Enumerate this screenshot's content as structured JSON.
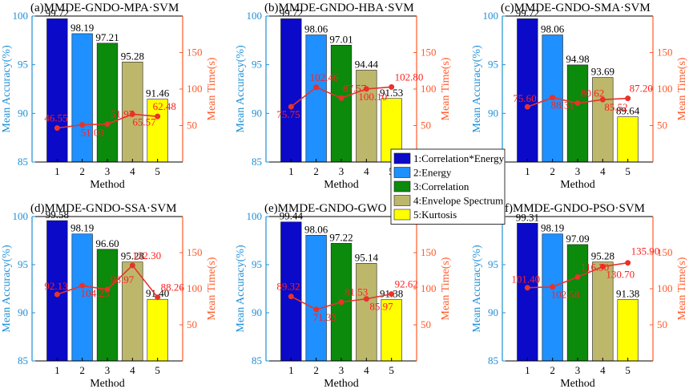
{
  "colors": {
    "bar1": "#0a0ac8",
    "bar2": "#1e90ff",
    "bar3": "#0b8a0b",
    "bar4": "#bdb76b",
    "bar5": "#ffff00",
    "accuracy_axis": "#1e8fd6",
    "time_axis": "#ff5a2a",
    "time_line": "#e8322a",
    "time_label": "#ff2020"
  },
  "legend": {
    "entries": [
      "1:Correlation*Energy",
      "2:Energy",
      "3:Correlation",
      "4:Envelope Spectrum",
      "5:Kurtosis"
    ]
  },
  "chart_data": [
    {
      "type": "bar",
      "title": "(a)MMDE-GNDO-MPA·SVM",
      "categories": [
        "1",
        "2",
        "3",
        "4",
        "5"
      ],
      "xlabel": "Method",
      "ylabel": "Mean Accuracy(%)",
      "ylim": [
        85,
        100
      ],
      "yticks": [
        "85",
        "90",
        "95",
        "100"
      ],
      "y2label": "Mean Time(s)",
      "y2lim": [
        0,
        200
      ],
      "y2ticks": [
        "50",
        "100",
        "150"
      ],
      "series": [
        {
          "name": "Mean Accuracy",
          "type": "bar",
          "values": [
            99.72,
            98.19,
            97.21,
            95.28,
            91.46
          ],
          "labels": [
            "99.72",
            "98.19",
            "97.21",
            "95.28",
            "91.46"
          ]
        },
        {
          "name": "Mean Time",
          "type": "line",
          "axis": "right",
          "values": [
            46.55,
            51.03,
            51.97,
            65.57,
            62.48
          ],
          "labels": [
            "46.55",
            "51.03",
            "51.97",
            "65.57",
            "62.48"
          ]
        }
      ]
    },
    {
      "type": "bar",
      "title": "(b)MMDE-GNDO-HBA·SVM",
      "categories": [
        "1",
        "2",
        "3",
        "4",
        "5"
      ],
      "xlabel": "Method",
      "ylabel": "Mean Accuracy(%)",
      "ylim": [
        85,
        100
      ],
      "yticks": [
        "85",
        "90",
        "95",
        "100"
      ],
      "y2label": "Mean Time(s)",
      "y2lim": [
        0,
        200
      ],
      "y2ticks": [
        "50",
        "100",
        "150"
      ],
      "series": [
        {
          "name": "Mean Accuracy",
          "type": "bar",
          "values": [
            99.72,
            98.06,
            97.01,
            94.44,
            91.53
          ],
          "labels": [
            "99.72",
            "98.06",
            "97.01",
            "94.44",
            "91.53"
          ]
        },
        {
          "name": "Mean Time",
          "type": "line",
          "axis": "right",
          "values": [
            75.75,
            102.46,
            87.57,
            100.1,
            102.8
          ],
          "labels": [
            "75.75",
            "102.46",
            "87.57",
            "100.10",
            "102.80"
          ]
        }
      ]
    },
    {
      "type": "bar",
      "title": "(c)MMDE-GNDO-SMA·SVM",
      "categories": [
        "1",
        "2",
        "3",
        "4",
        "5"
      ],
      "xlabel": "Method",
      "ylabel": "Mean Accuracy(%)",
      "ylim": [
        85,
        100
      ],
      "yticks": [
        "85",
        "90",
        "95",
        "100"
      ],
      "y2label": "Mean Time(s)",
      "y2lim": [
        0,
        200
      ],
      "y2ticks": [
        "50",
        "100",
        "150"
      ],
      "series": [
        {
          "name": "Mean Accuracy",
          "type": "bar",
          "values": [
            99.72,
            98.06,
            94.98,
            93.69,
            89.64
          ],
          "labels": [
            "99.72",
            "98.06",
            "94.98",
            "93.69",
            "89.64"
          ]
        },
        {
          "name": "Mean Time",
          "type": "line",
          "axis": "right",
          "values": [
            75.6,
            88.31,
            80.62,
            85.52,
            87.2
          ],
          "labels": [
            "75.60",
            "88.31",
            "80.62",
            "85.52",
            "87.20"
          ]
        }
      ]
    },
    {
      "type": "bar",
      "title": "(d)MMDE-GNDO-SSA·SVM",
      "categories": [
        "1",
        "2",
        "3",
        "4",
        "5"
      ],
      "xlabel": "Method",
      "ylabel": "Mean Accuracy(%)",
      "ylim": [
        85,
        100
      ],
      "yticks": [
        "85",
        "90",
        "95",
        "100"
      ],
      "y2label": "Mean Time(s)",
      "y2lim": [
        0,
        200
      ],
      "y2ticks": [
        "50",
        "100",
        "150"
      ],
      "series": [
        {
          "name": "Mean Accuracy",
          "type": "bar",
          "values": [
            99.58,
            98.19,
            96.6,
            95.28,
            91.4
          ],
          "labels": [
            "99.58",
            "98.19",
            "96.60",
            "95.28",
            "91.40"
          ]
        },
        {
          "name": "Mean Time",
          "type": "line",
          "axis": "right",
          "values": [
            92.13,
            104.25,
            98.97,
            132.3,
            88.26
          ],
          "labels": [
            "92.13",
            "104.25",
            "98.97",
            "132.30",
            "88.26"
          ]
        }
      ]
    },
    {
      "type": "bar",
      "title": "(e)MMDE-GNDO-GWO",
      "categories": [
        "1",
        "2",
        "3",
        "4",
        "5"
      ],
      "xlabel": "Method",
      "ylabel": "Mean Accuracy(%)",
      "ylim": [
        85,
        100
      ],
      "yticks": [
        "85",
        "90",
        "95",
        "100"
      ],
      "y2label": "Mean Time(s)",
      "y2lim": [
        0,
        200
      ],
      "y2ticks": [
        "50",
        "100",
        "150"
      ],
      "series": [
        {
          "name": "Mean Accuracy",
          "type": "bar",
          "values": [
            99.44,
            98.06,
            97.22,
            95.14,
            91.38
          ],
          "labels": [
            "99.44",
            "98.06",
            "97.22",
            "95.14",
            "91.38"
          ]
        },
        {
          "name": "Mean Time",
          "type": "line",
          "axis": "right",
          "values": [
            89.32,
            71.33,
            81.53,
            85.97,
            92.62
          ],
          "labels": [
            "89.32",
            "71.33",
            "81.53",
            "85.97",
            "92.62"
          ]
        }
      ]
    },
    {
      "type": "bar",
      "title": "(f)MMDE-GNDO-PSO·SVM",
      "categories": [
        "1",
        "2",
        "3",
        "4",
        "5"
      ],
      "xlabel": "Method",
      "ylabel": "Mean Accuracy(%)",
      "ylim": [
        85,
        100
      ],
      "yticks": [
        "85",
        "90",
        "95",
        "100"
      ],
      "y2label": "Mean Time(s)",
      "y2lim": [
        0,
        200
      ],
      "y2ticks": [
        "50",
        "100",
        "150"
      ],
      "series": [
        {
          "name": "Mean Accuracy",
          "type": "bar",
          "values": [
            99.31,
            98.19,
            97.09,
            95.28,
            91.38
          ],
          "labels": [
            "99.31",
            "98.19",
            "97.09",
            "95.28",
            "91.38"
          ]
        },
        {
          "name": "Mean Time",
          "type": "line",
          "axis": "right",
          "values": [
            101.4,
            102.58,
            116.3,
            130.7,
            135.9
          ],
          "labels": [
            "101.40",
            "102.58",
            "116.30",
            "130.70",
            "135.90"
          ]
        }
      ]
    }
  ]
}
